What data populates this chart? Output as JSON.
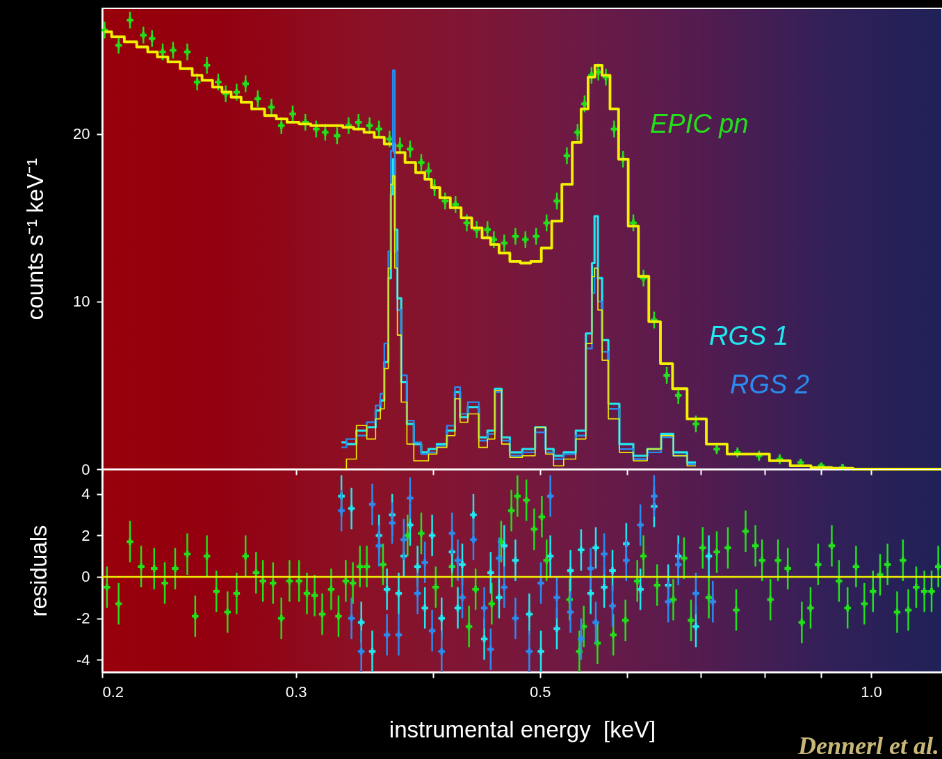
{
  "chart_data": [
    {
      "type": "line",
      "ylabel": "counts s⁻¹ keV⁻¹",
      "log": "x",
      "tick_labels": "y",
      "xlim": [
        0.2,
        1.16
      ],
      "xticks": [
        {
          "value": 0.2,
          "label": null
        },
        {
          "value": 0.3,
          "label": null
        },
        {
          "value": 0.4,
          "label": null
        },
        {
          "value": 0.5,
          "label": null
        },
        {
          "value": 0.6,
          "label": null
        },
        {
          "value": 0.7,
          "label": null
        },
        {
          "value": 0.8,
          "label": null
        },
        {
          "value": 0.9,
          "label": null
        },
        {
          "value": 1,
          "label": null
        }
      ],
      "ylim": [
        0,
        27.5
      ],
      "yticks": [
        0,
        10,
        20
      ],
      "series": [
        {
          "name": "EPIC pn",
          "type": "scatter",
          "marker": "cross",
          "color": "#22e01a",
          "x": [
            0.201,
            0.207,
            0.212,
            0.218,
            0.222,
            0.227,
            0.232,
            0.239,
            0.244,
            0.249,
            0.255,
            0.259,
            0.265,
            0.27,
            0.277,
            0.285,
            0.291,
            0.298,
            0.306,
            0.313,
            0.319,
            0.327,
            0.335,
            0.342,
            0.35,
            0.357,
            0.365,
            0.373,
            0.381,
            0.39,
            0.396,
            0.401,
            0.41,
            0.419,
            0.429,
            0.438,
            0.448,
            0.454,
            0.464,
            0.475,
            0.485,
            0.496,
            0.507,
            0.518,
            0.529,
            0.541,
            0.549,
            0.557,
            0.565,
            0.574,
            0.584,
            0.595,
            0.608,
            0.621,
            0.635,
            0.652,
            0.668,
            0.693,
            0.724,
            0.756,
            0.791,
            0.826,
            0.863,
            0.901,
            0.942
          ],
          "values": [
            26.2,
            25.3,
            26.8,
            25.9,
            25.7,
            24.9,
            25.0,
            24.9,
            23.1,
            24.1,
            23.1,
            22.4,
            22.5,
            23.0,
            22.1,
            21.6,
            20.5,
            21.2,
            20.7,
            20.3,
            20.1,
            19.9,
            20.5,
            20.7,
            20.5,
            20.3,
            19.7,
            19.3,
            19.1,
            18.3,
            17.8,
            16.8,
            16.0,
            15.8,
            14.7,
            14.3,
            14.3,
            13.7,
            13.5,
            13.9,
            13.7,
            13.9,
            14.7,
            16.0,
            18.7,
            20.1,
            21.8,
            23.5,
            23.7,
            23.4,
            20.3,
            18.5,
            14.7,
            11.4,
            8.9,
            5.6,
            4.4,
            2.7,
            1.2,
            1.0,
            0.8,
            0.6,
            0.4,
            0.2,
            0.1
          ],
          "errors": [
            0.5,
            0.5,
            0.5,
            0.5,
            0.5,
            0.5,
            0.5,
            0.5,
            0.5,
            0.5,
            0.5,
            0.5,
            0.5,
            0.5,
            0.5,
            0.5,
            0.5,
            0.5,
            0.5,
            0.5,
            0.5,
            0.5,
            0.5,
            0.5,
            0.5,
            0.5,
            0.5,
            0.5,
            0.5,
            0.5,
            0.5,
            0.5,
            0.5,
            0.5,
            0.5,
            0.5,
            0.5,
            0.5,
            0.5,
            0.5,
            0.5,
            0.5,
            0.5,
            0.5,
            0.5,
            0.5,
            0.5,
            0.5,
            0.5,
            0.5,
            0.5,
            0.5,
            0.5,
            0.5,
            0.5,
            0.5,
            0.5,
            0.5,
            0.3,
            0.3,
            0.3,
            0.3,
            0.2,
            0.1,
            0.1
          ]
        },
        {
          "type": "step",
          "color": "#f0f000",
          "x": [
            0.201,
            0.207,
            0.212,
            0.218,
            0.222,
            0.227,
            0.232,
            0.239,
            0.244,
            0.249,
            0.255,
            0.259,
            0.265,
            0.27,
            0.277,
            0.285,
            0.291,
            0.298,
            0.306,
            0.313,
            0.319,
            0.327,
            0.335,
            0.342,
            0.35,
            0.357,
            0.365,
            0.373,
            0.381,
            0.39,
            0.396,
            0.401,
            0.41,
            0.419,
            0.429,
            0.438,
            0.448,
            0.454,
            0.464,
            0.475,
            0.485,
            0.496,
            0.507,
            0.518,
            0.529,
            0.541,
            0.549,
            0.557,
            0.565,
            0.574,
            0.584,
            0.595,
            0.608,
            0.621,
            0.635,
            0.652,
            0.668,
            0.693,
            0.724,
            0.756,
            0.791,
            0.826,
            0.863,
            0.901,
            0.942,
            0.984,
            1.16
          ],
          "values": [
            26.1,
            25.8,
            25.5,
            25.2,
            24.9,
            24.6,
            24.3,
            23.9,
            23.5,
            23.2,
            22.8,
            22.5,
            22.2,
            21.9,
            21.5,
            21.1,
            20.9,
            20.7,
            20.6,
            20.5,
            20.5,
            20.5,
            20.4,
            20.3,
            20.1,
            19.8,
            19.4,
            18.9,
            18.3,
            17.7,
            17.3,
            16.8,
            16.2,
            15.6,
            15.0,
            14.4,
            13.8,
            13.4,
            12.9,
            12.4,
            12.3,
            12.4,
            13.2,
            14.8,
            17.0,
            19.5,
            21.5,
            23.4,
            24.1,
            23.5,
            21.5,
            18.5,
            14.5,
            11.5,
            8.8,
            6.3,
            4.8,
            3.0,
            1.5,
            0.9,
            0.9,
            0.5,
            0.2,
            0.1,
            0.05,
            0,
            0
          ]
        },
        {
          "name": "RGS 1",
          "type": "step",
          "color": "#20e8f0",
          "x": [
            0.33,
            0.337,
            0.344,
            0.352,
            0.357,
            0.359,
            0.363,
            0.365,
            0.367,
            0.368,
            0.37,
            0.372,
            0.376,
            0.381,
            0.387,
            0.393,
            0.399,
            0.407,
            0.416,
            0.421,
            0.425,
            0.435,
            0.445,
            0.451,
            0.459,
            0.464,
            0.475,
            0.489,
            0.501,
            0.511,
            0.518,
            0.533,
            0.545,
            0.556,
            0.559,
            0.562,
            0.567,
            0.572,
            0.582,
            0.599,
            0.617,
            0.635,
            0.654,
            0.668,
            0.693
          ],
          "values": [
            1.6,
            1.5,
            2.3,
            2.5,
            3.5,
            4.1,
            6.4,
            11.4,
            16.4,
            18.5,
            14.3,
            10.2,
            5.2,
            2.7,
            1.5,
            1.0,
            1.2,
            1.5,
            2.3,
            4.6,
            3.1,
            3.7,
            1.9,
            2.3,
            4.8,
            1.9,
            1.0,
            1.2,
            2.5,
            1.2,
            0.8,
            1.0,
            2.3,
            8.1,
            12.3,
            15.1,
            11.4,
            7.7,
            3.9,
            1.5,
            0.8,
            1.2,
            2.1,
            1.0,
            0.4
          ]
        },
        {
          "name": "RGS 2",
          "type": "step",
          "color": "#2a8cf0",
          "x": [
            0.33,
            0.337,
            0.344,
            0.352,
            0.357,
            0.359,
            0.363,
            0.365,
            0.367,
            0.368,
            0.37,
            0.372,
            0.376,
            0.381,
            0.387,
            0.393,
            0.399,
            0.407,
            0.416,
            0.421,
            0.425,
            0.435,
            0.445,
            0.451,
            0.459,
            0.464,
            0.475,
            0.489,
            0.501,
            0.511,
            0.518,
            0.533,
            0.545,
            0.556,
            0.559,
            0.562,
            0.567,
            0.572,
            0.582,
            0.599,
            0.617,
            0.635,
            0.654,
            0.668,
            0.693
          ],
          "values": [
            1.3,
            1.8,
            2.0,
            2.8,
            3.8,
            4.5,
            7.5,
            13.0,
            19.0,
            23.8,
            13.0,
            9.5,
            5.6,
            2.9,
            1.6,
            0.9,
            1.0,
            1.4,
            2.6,
            4.9,
            3.3,
            4.0,
            1.7,
            2.1,
            4.6,
            1.7,
            0.8,
            1.0,
            2.2,
            1.0,
            0.6,
            0.9,
            2.0,
            7.2,
            10.5,
            12.0,
            10.0,
            7.0,
            3.6,
            1.2,
            0.6,
            1.0,
            1.9,
            0.8,
            0.3
          ]
        },
        {
          "type": "step",
          "color": "#f0f000",
          "x": [
            0.33,
            0.337,
            0.344,
            0.352,
            0.357,
            0.359,
            0.363,
            0.365,
            0.367,
            0.368,
            0.37,
            0.372,
            0.376,
            0.381,
            0.387,
            0.393,
            0.399,
            0.407,
            0.416,
            0.421,
            0.425,
            0.435,
            0.445,
            0.451,
            0.459,
            0.464,
            0.475,
            0.489,
            0.501,
            0.511,
            0.518,
            0.533,
            0.545,
            0.556,
            0.559,
            0.562,
            0.567,
            0.572,
            0.582,
            0.599,
            0.617,
            0.635,
            0.654,
            0.668,
            0.693
          ],
          "values": [
            0,
            0.6,
            2.6,
            1.8,
            3.0,
            3.6,
            6.0,
            12.0,
            17.0,
            17.5,
            12.0,
            8.0,
            4.0,
            1.5,
            0.5,
            0.5,
            0.9,
            1.3,
            2.0,
            4.2,
            2.8,
            3.3,
            1.3,
            1.8,
            4.7,
            1.5,
            0.7,
            0.8,
            2.5,
            0.9,
            0.2,
            0.6,
            1.8,
            7.5,
            11.5,
            12.0,
            9.5,
            6.5,
            3.0,
            1.0,
            0.5,
            1.2,
            2.0,
            0.8,
            0.2
          ]
        }
      ]
    },
    {
      "type": "scatter",
      "xlabel": "instrumental energy  [keV]",
      "ylabel": "residuals",
      "log": "x",
      "xlim": [
        0.2,
        1.16
      ],
      "xticks": [
        0.2,
        0.3,
        {
          "value": 0.4,
          "label": null
        },
        0.5,
        {
          "value": 0.6,
          "label": null
        },
        {
          "value": 0.7,
          "label": null
        },
        {
          "value": 0.8,
          "label": null
        },
        {
          "value": 0.9,
          "label": null
        },
        {
          "value": 1,
          "label": "1.0"
        }
      ],
      "ylim": [
        -4.6,
        5.2
      ],
      "yticks": [
        -4,
        -2,
        0,
        2,
        4
      ],
      "ref_lines": [
        {
          "axis": "y",
          "value": 0,
          "color": "#f0f000"
        }
      ],
      "annotations": [
        "Dennerl et al."
      ],
      "series": [
        {
          "color": "#22e01a",
          "marker": "cross",
          "x": [
            0.202,
            0.207,
            0.212,
            0.217,
            0.223,
            0.228,
            0.233,
            0.239,
            0.243,
            0.249,
            0.254,
            0.26,
            0.265,
            0.27,
            0.276,
            0.28,
            0.286,
            0.291,
            0.296,
            0.302,
            0.307,
            0.312,
            0.317,
            0.323,
            0.328,
            0.333,
            0.338,
            0.343,
            0.348,
            0.36,
            0.379,
            0.39,
            0.402,
            0.416,
            0.431,
            0.437,
            0.452,
            0.461,
            0.471,
            0.477,
            0.486,
            0.494,
            0.502,
            0.507,
            0.532,
            0.543,
            0.548,
            0.564,
            0.583,
            0.598,
            0.613,
            0.621,
            0.639,
            0.661,
            0.676,
            0.686,
            0.703,
            0.712,
            0.724,
            0.741,
            0.754,
            0.769,
            0.785,
            0.796,
            0.81,
            0.823,
            0.84,
            0.865,
            0.881,
            0.895,
            0.921,
            0.935,
            0.952,
            0.969,
            0.986,
            1.004,
            1.019,
            1.035,
            1.056,
            1.069,
            1.081,
            1.099,
            1.118,
            1.135,
            1.151
          ],
          "values": [
            -0.5,
            -1.3,
            1.7,
            0.5,
            0.4,
            -0.3,
            0.4,
            1.1,
            -1.9,
            1.0,
            -0.7,
            -1.7,
            -0.8,
            1.0,
            0.2,
            -0.2,
            -0.3,
            -2.0,
            -0.2,
            -0.2,
            -0.8,
            -0.9,
            -1.8,
            -0.6,
            -1.9,
            -0.2,
            -0.3,
            0.5,
            0.5,
            0.6,
            2.0,
            2.1,
            -0.5,
            0.5,
            -2.4,
            -0.6,
            -1.3,
            1.7,
            3.2,
            3.9,
            3.7,
            2.3,
            2.9,
            0.8,
            -1.1,
            -3.6,
            -2.4,
            -3.2,
            -2.8,
            -2.1,
            -0.2,
            1.0,
            -0.4,
            -1.1,
            0.9,
            -2.1,
            1.4,
            -1.0,
            1.2,
            1.4,
            -1.6,
            2.2,
            1.5,
            0.8,
            -1.1,
            0.8,
            0.4,
            -2.2,
            -1.5,
            0.6,
            1.5,
            -0.2,
            -1.5,
            0.5,
            -1.3,
            -0.7,
            0.1,
            0.6,
            -1.7,
            0.8,
            -1.6,
            -0.5,
            -0.7,
            -0.7,
            0.5
          ],
          "errors": [
            1,
            1,
            1,
            1,
            1,
            1,
            1,
            1,
            1,
            1,
            1,
            1,
            1,
            1,
            1,
            1,
            1,
            1,
            1,
            1,
            1,
            1,
            1,
            1,
            1,
            1,
            1,
            1,
            1,
            1,
            1,
            1,
            1,
            1,
            1,
            1,
            1,
            1,
            1,
            1,
            1,
            1,
            1,
            1,
            1,
            1,
            1,
            1,
            1,
            1,
            1,
            1,
            1,
            1,
            1,
            1,
            1,
            1,
            1,
            1,
            1,
            1,
            1,
            1,
            1,
            1,
            1,
            1,
            1,
            1,
            1,
            1,
            1,
            1,
            1,
            1,
            1,
            1,
            1,
            1,
            1,
            1,
            1,
            1,
            1
          ]
        },
        {
          "color": "#20e8f0",
          "marker": "cross",
          "x": [
            0.33,
            0.337,
            0.344,
            0.352,
            0.357,
            0.363,
            0.367,
            0.372,
            0.376,
            0.381,
            0.387,
            0.393,
            0.399,
            0.407,
            0.416,
            0.421,
            0.425,
            0.435,
            0.445,
            0.451,
            0.459,
            0.464,
            0.475,
            0.489,
            0.501,
            0.511,
            0.518,
            0.533,
            0.545,
            0.556,
            0.562,
            0.572,
            0.582,
            0.599,
            0.617,
            0.635,
            0.654,
            0.668,
            0.693,
            0.712
          ],
          "values": [
            3.9,
            3.3,
            -2.2,
            -3.6,
            2.0,
            -0.6,
            3.0,
            -0.8,
            1.0,
            2.5,
            0.5,
            -1.5,
            2.0,
            -2.0,
            1.2,
            -1.5,
            0.6,
            3.0,
            -3.0,
            0.2,
            -1.0,
            1.5,
            0.8,
            -1.8,
            -3.6,
            1.0,
            -2.5,
            0.3,
            1.3,
            -0.8,
            1.4,
            -0.5,
            0.3,
            1.6,
            -0.6,
            3.4,
            -0.4,
            1.0,
            -2.4,
            1.0
          ],
          "errors": [
            1,
            1,
            1,
            1,
            1,
            1,
            1,
            1,
            1,
            1,
            1,
            1,
            1,
            1,
            1,
            1,
            1,
            1,
            1,
            1,
            1,
            1,
            1,
            1,
            1,
            1,
            1,
            1,
            1,
            1,
            1,
            1,
            1,
            1,
            1,
            1,
            1,
            1,
            1,
            1
          ]
        },
        {
          "color": "#2a8cf0",
          "marker": "cross",
          "x": [
            0.33,
            0.337,
            0.344,
            0.352,
            0.357,
            0.363,
            0.367,
            0.372,
            0.376,
            0.381,
            0.387,
            0.393,
            0.399,
            0.407,
            0.416,
            0.421,
            0.425,
            0.435,
            0.445,
            0.451,
            0.459,
            0.464,
            0.475,
            0.489,
            0.501,
            0.511,
            0.518,
            0.533,
            0.545,
            0.556,
            0.562,
            0.572,
            0.582,
            0.599,
            0.617,
            0.635,
            0.654,
            0.668,
            0.693,
            0.718
          ],
          "values": [
            3.2,
            -2.0,
            -3.6,
            3.5,
            1.5,
            -2.8,
            2.6,
            -2.8,
            1.8,
            3.8,
            -0.8,
            0.7,
            -2.6,
            -3.6,
            2.1,
            0.8,
            -1.0,
            1.8,
            -1.5,
            -3.5,
            0.9,
            -0.5,
            -2.0,
            -3.6,
            -0.3,
            3.9,
            -1.0,
            -1.7,
            -3.0,
            0.4,
            -2.2,
            1.1,
            -1.4,
            0.8,
            2.5,
            3.9,
            -1.2,
            0.6,
            -0.8,
            -1.2
          ],
          "errors": [
            1,
            1,
            1,
            1,
            1,
            1,
            1,
            1,
            1,
            1,
            1,
            1,
            1,
            1,
            1,
            1,
            1,
            1,
            1,
            1,
            1,
            1,
            1,
            1,
            1,
            1,
            1,
            1,
            1,
            1,
            1,
            1,
            1,
            1,
            1,
            1,
            1,
            1,
            1,
            1
          ]
        }
      ]
    }
  ]
}
